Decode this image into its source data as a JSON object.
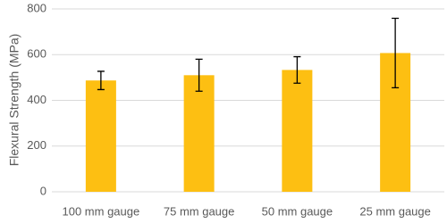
{
  "chart_data": {
    "type": "bar",
    "ylabel": "Flexural Strength (MPa)",
    "categories": [
      "100 mm gauge",
      "75 mm gauge",
      "50 mm gauge",
      "25 mm gauge"
    ],
    "values": [
      487,
      510,
      533,
      607
    ],
    "errors": [
      40,
      70,
      58,
      152
    ],
    "color": "#FDBF12",
    "ylim": [
      0,
      800
    ],
    "yticks": [
      0,
      200,
      400,
      600,
      800
    ],
    "grid": true
  }
}
